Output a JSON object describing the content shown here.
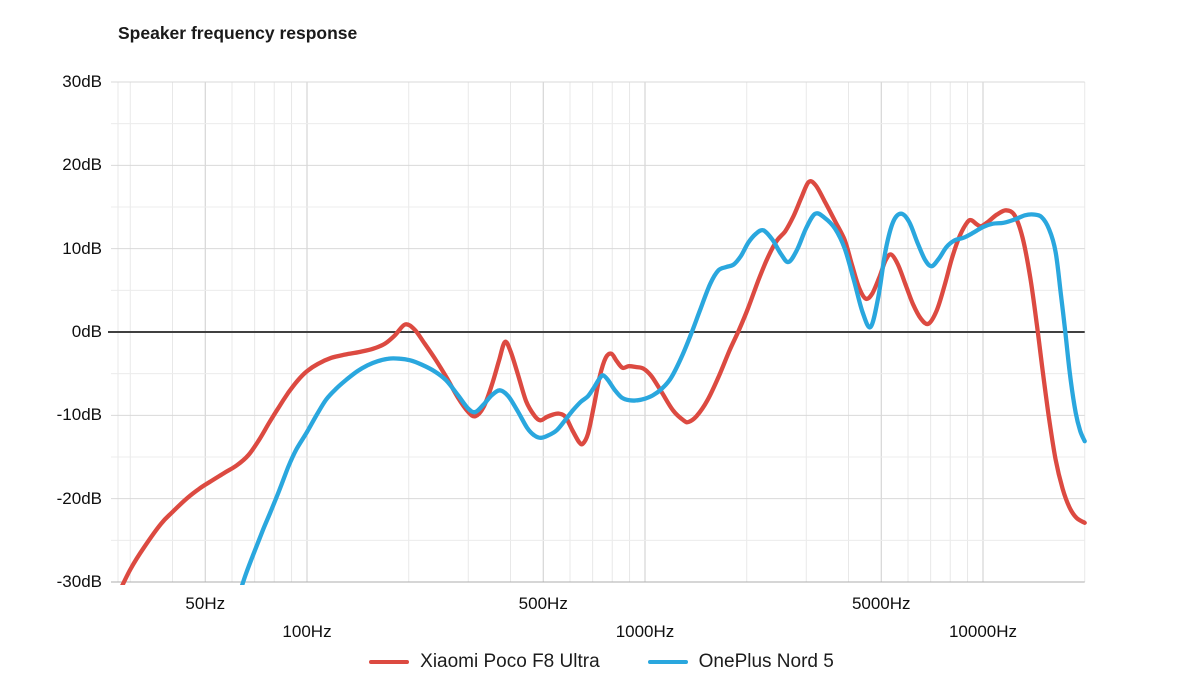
{
  "title": "Speaker frequency response",
  "colors": {
    "background": "#ffffff",
    "grid_minor": "#ececec",
    "grid_major": "#d9d9d9",
    "grid_freq_major": "#cdcdcd",
    "grid_freq_minor": "#e8e8e8",
    "zero_line": "#404040",
    "bottom_axis": "#adadad",
    "series_red": "#dc4a41",
    "series_blue": "#2aa7de"
  },
  "chart_data": {
    "type": "line",
    "title": "Speaker frequency response",
    "x_axis": {
      "scale": "log",
      "unit": "Hz",
      "min": 27.6,
      "max": 20000,
      "gridline_freqs": [
        30,
        40,
        50,
        60,
        70,
        80,
        90,
        100,
        200,
        300,
        400,
        500,
        600,
        700,
        800,
        900,
        1000,
        2000,
        3000,
        4000,
        5000,
        6000,
        7000,
        8000,
        9000,
        10000,
        20000
      ],
      "labeled_freqs": [
        50,
        100,
        500,
        1000,
        5000,
        10000
      ],
      "tick_row_upper": [
        {
          "freq": 50,
          "label": "50Hz"
        },
        {
          "freq": 500,
          "label": "500Hz"
        },
        {
          "freq": 5000,
          "label": "5000Hz"
        }
      ],
      "tick_row_lower": [
        {
          "freq": 100,
          "label": "100Hz"
        },
        {
          "freq": 1000,
          "label": "1000Hz"
        },
        {
          "freq": 10000,
          "label": "10000Hz"
        }
      ]
    },
    "y_axis": {
      "unit": "dB",
      "min": -30,
      "max": 30,
      "gridline_step": 5,
      "labeled_ticks": [
        {
          "value": 30,
          "label": "30dB"
        },
        {
          "value": 20,
          "label": "20dB"
        },
        {
          "value": 10,
          "label": "10dB"
        },
        {
          "value": 0,
          "label": "0dB"
        },
        {
          "value": -10,
          "label": "-10dB"
        },
        {
          "value": -20,
          "label": "-20dB"
        },
        {
          "value": -30,
          "label": "-30dB"
        }
      ]
    },
    "legend_position": "bottom-center",
    "grid": true,
    "series": [
      {
        "name": "Xiaomi Poco F8 Ultra",
        "color": "#dc4a41",
        "points": [
          [
            27.6,
            -31.5
          ],
          [
            30,
            -28.5
          ],
          [
            33,
            -25.8
          ],
          [
            37,
            -23
          ],
          [
            40,
            -21.6
          ],
          [
            44,
            -20
          ],
          [
            48,
            -18.8
          ],
          [
            52,
            -17.9
          ],
          [
            57,
            -16.9
          ],
          [
            62,
            -16
          ],
          [
            67,
            -14.8
          ],
          [
            72,
            -13
          ],
          [
            77,
            -11
          ],
          [
            82,
            -9.2
          ],
          [
            88,
            -7.3
          ],
          [
            94,
            -5.8
          ],
          [
            100,
            -4.7
          ],
          [
            108,
            -3.8
          ],
          [
            118,
            -3.1
          ],
          [
            130,
            -2.7
          ],
          [
            143,
            -2.4
          ],
          [
            157,
            -2
          ],
          [
            170,
            -1.4
          ],
          [
            182,
            -0.4
          ],
          [
            195,
            0.9
          ],
          [
            208,
            0.3
          ],
          [
            222,
            -1.3
          ],
          [
            240,
            -3.3
          ],
          [
            260,
            -5.6
          ],
          [
            280,
            -7.9
          ],
          [
            300,
            -9.6
          ],
          [
            315,
            -10.1
          ],
          [
            333,
            -9
          ],
          [
            352,
            -6.4
          ],
          [
            370,
            -3.4
          ],
          [
            385,
            -1.2
          ],
          [
            400,
            -2.3
          ],
          [
            420,
            -5
          ],
          [
            445,
            -8.3
          ],
          [
            470,
            -10
          ],
          [
            490,
            -10.6
          ],
          [
            512,
            -10.2
          ],
          [
            535,
            -9.9
          ],
          [
            558,
            -9.8
          ],
          [
            582,
            -10.2
          ],
          [
            610,
            -11.8
          ],
          [
            638,
            -13.2
          ],
          [
            655,
            -13.4
          ],
          [
            678,
            -12.2
          ],
          [
            705,
            -9
          ],
          [
            735,
            -5.3
          ],
          [
            765,
            -3.1
          ],
          [
            795,
            -2.6
          ],
          [
            825,
            -3.5
          ],
          [
            858,
            -4.3
          ],
          [
            895,
            -4.1
          ],
          [
            940,
            -4.2
          ],
          [
            990,
            -4.4
          ],
          [
            1045,
            -5.3
          ],
          [
            1120,
            -7.2
          ],
          [
            1210,
            -9.4
          ],
          [
            1300,
            -10.6
          ],
          [
            1345,
            -10.8
          ],
          [
            1420,
            -10.1
          ],
          [
            1530,
            -8.2
          ],
          [
            1650,
            -5.4
          ],
          [
            1780,
            -2.2
          ],
          [
            1900,
            0.3
          ],
          [
            2020,
            2.9
          ],
          [
            2160,
            6.1
          ],
          [
            2300,
            8.8
          ],
          [
            2450,
            10.9
          ],
          [
            2600,
            12.1
          ],
          [
            2750,
            13.9
          ],
          [
            2900,
            16.1
          ],
          [
            3050,
            18
          ],
          [
            3200,
            17.6
          ],
          [
            3400,
            15.7
          ],
          [
            3650,
            13.3
          ],
          [
            3900,
            11
          ],
          [
            4100,
            8
          ],
          [
            4300,
            5.3
          ],
          [
            4500,
            4
          ],
          [
            4700,
            4.6
          ],
          [
            4950,
            6.7
          ],
          [
            5150,
            8.6
          ],
          [
            5350,
            9.3
          ],
          [
            5600,
            8.1
          ],
          [
            5900,
            5.7
          ],
          [
            6200,
            3.4
          ],
          [
            6550,
            1.6
          ],
          [
            6900,
            1
          ],
          [
            7300,
            2.6
          ],
          [
            7700,
            5.6
          ],
          [
            8100,
            8.9
          ],
          [
            8550,
            11.6
          ],
          [
            9000,
            13.2
          ],
          [
            9250,
            13.4
          ],
          [
            9600,
            12.9
          ],
          [
            9900,
            12.7
          ],
          [
            10400,
            13.3
          ],
          [
            11000,
            14.1
          ],
          [
            11700,
            14.6
          ],
          [
            12400,
            14
          ],
          [
            13100,
            11.3
          ],
          [
            13800,
            6.5
          ],
          [
            14400,
            1.2
          ],
          [
            15000,
            -4.5
          ],
          [
            15700,
            -10.5
          ],
          [
            16400,
            -15.3
          ],
          [
            17200,
            -18.8
          ],
          [
            18000,
            -21
          ],
          [
            18900,
            -22.3
          ],
          [
            20000,
            -22.9
          ]
        ]
      },
      {
        "name": "OnePlus Nord 5",
        "color": "#2aa7de",
        "points": [
          [
            63,
            -31.5
          ],
          [
            66,
            -29
          ],
          [
            70,
            -26.3
          ],
          [
            74,
            -23.8
          ],
          [
            78,
            -21.6
          ],
          [
            83,
            -18.9
          ],
          [
            88,
            -16.2
          ],
          [
            93,
            -14.1
          ],
          [
            100,
            -12
          ],
          [
            107,
            -9.9
          ],
          [
            114,
            -8.1
          ],
          [
            122,
            -6.8
          ],
          [
            131,
            -5.7
          ],
          [
            141,
            -4.7
          ],
          [
            151,
            -4
          ],
          [
            162,
            -3.5
          ],
          [
            174,
            -3.2
          ],
          [
            188,
            -3.2
          ],
          [
            202,
            -3.4
          ],
          [
            218,
            -3.9
          ],
          [
            238,
            -4.7
          ],
          [
            258,
            -5.8
          ],
          [
            280,
            -7.6
          ],
          [
            300,
            -9.2
          ],
          [
            315,
            -9.6
          ],
          [
            333,
            -8.7
          ],
          [
            352,
            -7.6
          ],
          [
            372,
            -7
          ],
          [
            394,
            -7.7
          ],
          [
            420,
            -9.5
          ],
          [
            448,
            -11.5
          ],
          [
            470,
            -12.4
          ],
          [
            492,
            -12.7
          ],
          [
            518,
            -12.4
          ],
          [
            548,
            -11.8
          ],
          [
            580,
            -10.6
          ],
          [
            612,
            -9.4
          ],
          [
            645,
            -8.4
          ],
          [
            678,
            -7.7
          ],
          [
            708,
            -6.6
          ],
          [
            733,
            -5.6
          ],
          [
            752,
            -5.2
          ],
          [
            778,
            -5.8
          ],
          [
            815,
            -7
          ],
          [
            855,
            -7.9
          ],
          [
            900,
            -8.2
          ],
          [
            950,
            -8.2
          ],
          [
            1000,
            -8
          ],
          [
            1055,
            -7.6
          ],
          [
            1115,
            -6.9
          ],
          [
            1190,
            -5.6
          ],
          [
            1280,
            -3.1
          ],
          [
            1370,
            -0.2
          ],
          [
            1460,
            2.8
          ],
          [
            1560,
            5.8
          ],
          [
            1650,
            7.4
          ],
          [
            1740,
            7.8
          ],
          [
            1830,
            8.1
          ],
          [
            1920,
            9.1
          ],
          [
            2020,
            10.7
          ],
          [
            2130,
            11.8
          ],
          [
            2240,
            12.2
          ],
          [
            2380,
            11.1
          ],
          [
            2530,
            9.3
          ],
          [
            2660,
            8.4
          ],
          [
            2820,
            9.9
          ],
          [
            3000,
            12.5
          ],
          [
            3190,
            14.2
          ],
          [
            3400,
            13.7
          ],
          [
            3650,
            12.4
          ],
          [
            3900,
            10
          ],
          [
            4150,
            6.2
          ],
          [
            4400,
            2.4
          ],
          [
            4650,
            0.6
          ],
          [
            4900,
            4.2
          ],
          [
            5150,
            9.8
          ],
          [
            5420,
            13.2
          ],
          [
            5720,
            14.2
          ],
          [
            6050,
            13.2
          ],
          [
            6400,
            10.7
          ],
          [
            6750,
            8.6
          ],
          [
            7050,
            7.9
          ],
          [
            7400,
            8.8
          ],
          [
            7800,
            10.2
          ],
          [
            8250,
            11
          ],
          [
            8750,
            11.3
          ],
          [
            9350,
            11.9
          ],
          [
            10000,
            12.6
          ],
          [
            10700,
            13
          ],
          [
            11500,
            13.1
          ],
          [
            12400,
            13.5
          ],
          [
            13300,
            14
          ],
          [
            14100,
            14.1
          ],
          [
            14900,
            13.8
          ],
          [
            15700,
            12.3
          ],
          [
            16400,
            9.6
          ],
          [
            17000,
            4.5
          ],
          [
            17500,
            0.2
          ],
          [
            18100,
            -5.2
          ],
          [
            18800,
            -9.7
          ],
          [
            19400,
            -11.9
          ],
          [
            20000,
            -13.1
          ]
        ]
      }
    ]
  }
}
